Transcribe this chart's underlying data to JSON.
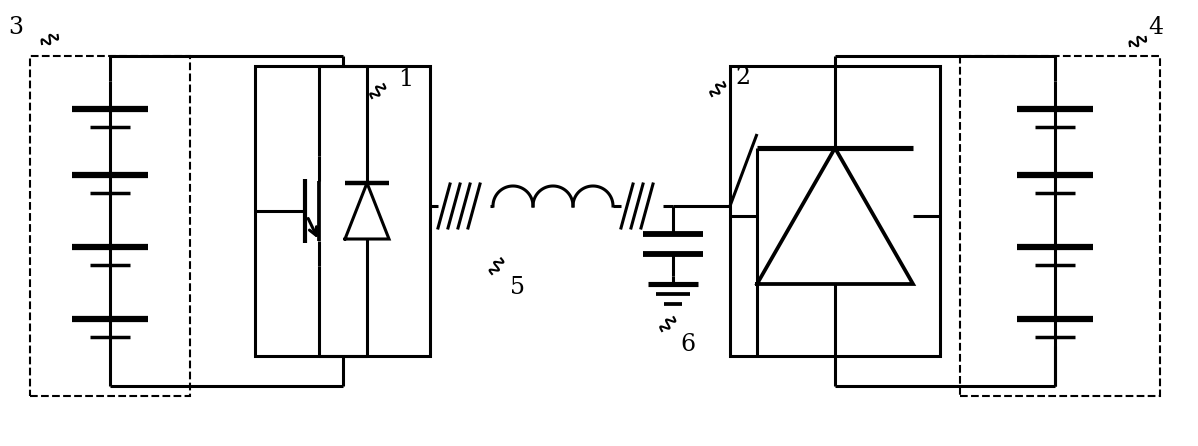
{
  "bg_color": "#ffffff",
  "line_color": "#000000",
  "lw": 2.2,
  "fig_width": 11.98,
  "fig_height": 4.46,
  "xlim": [
    0,
    11.98
  ],
  "ylim": [
    0,
    4.46
  ]
}
